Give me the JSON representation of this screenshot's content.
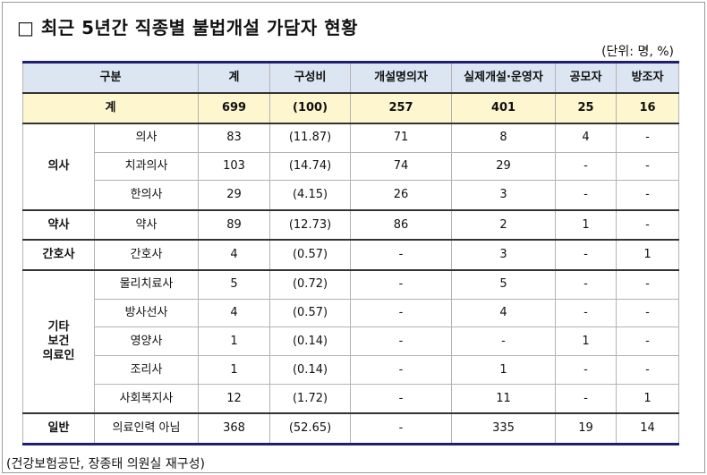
{
  "title": "□ 최근 5년간 직종별 불법개설 가담자 현황",
  "unit": "(단위: 명, %)",
  "table": {
    "headers": [
      "구분",
      "계",
      "구성비",
      "개설명의자",
      "실제개설·운영자",
      "공모자",
      "방조자"
    ],
    "total": {
      "label": "계",
      "values": [
        "699",
        "(100)",
        "257",
        "401",
        "25",
        "16"
      ]
    },
    "groups": [
      {
        "name": "의사",
        "rows": [
          {
            "sub": "의사",
            "values": [
              "83",
              "(11.87)",
              "71",
              "8",
              "4",
              "-"
            ]
          },
          {
            "sub": "치과의사",
            "values": [
              "103",
              "(14.74)",
              "74",
              "29",
              "-",
              "-"
            ]
          },
          {
            "sub": "한의사",
            "values": [
              "29",
              "(4.15)",
              "26",
              "3",
              "-",
              "-"
            ]
          }
        ]
      },
      {
        "name": "약사",
        "rows": [
          {
            "sub": "약사",
            "values": [
              "89",
              "(12.73)",
              "86",
              "2",
              "1",
              "-"
            ]
          }
        ]
      },
      {
        "name": "간호사",
        "rows": [
          {
            "sub": "간호사",
            "values": [
              "4",
              "(0.57)",
              "-",
              "3",
              "-",
              "1"
            ]
          }
        ]
      },
      {
        "name": "기타\n보건\n의료인",
        "rows": [
          {
            "sub": "물리치료사",
            "values": [
              "5",
              "(0.72)",
              "-",
              "5",
              "-",
              "-"
            ]
          },
          {
            "sub": "방사선사",
            "values": [
              "4",
              "(0.57)",
              "-",
              "4",
              "-",
              "-"
            ]
          },
          {
            "sub": "영양사",
            "values": [
              "1",
              "(0.14)",
              "-",
              "-",
              "1",
              "-"
            ]
          },
          {
            "sub": "조리사",
            "values": [
              "1",
              "(0.14)",
              "-",
              "1",
              "-",
              "-"
            ]
          },
          {
            "sub": "사회복지사",
            "values": [
              "12",
              "(1.72)",
              "-",
              "11",
              "-",
              "1"
            ]
          }
        ]
      },
      {
        "name": "일반",
        "rows": [
          {
            "sub": "의료인력 아님",
            "values": [
              "368",
              "(52.65)",
              "-",
              "335",
              "19",
              "14"
            ]
          }
        ]
      }
    ]
  },
  "source": "(건강보험공단, 장종태 의원실 재구성)"
}
